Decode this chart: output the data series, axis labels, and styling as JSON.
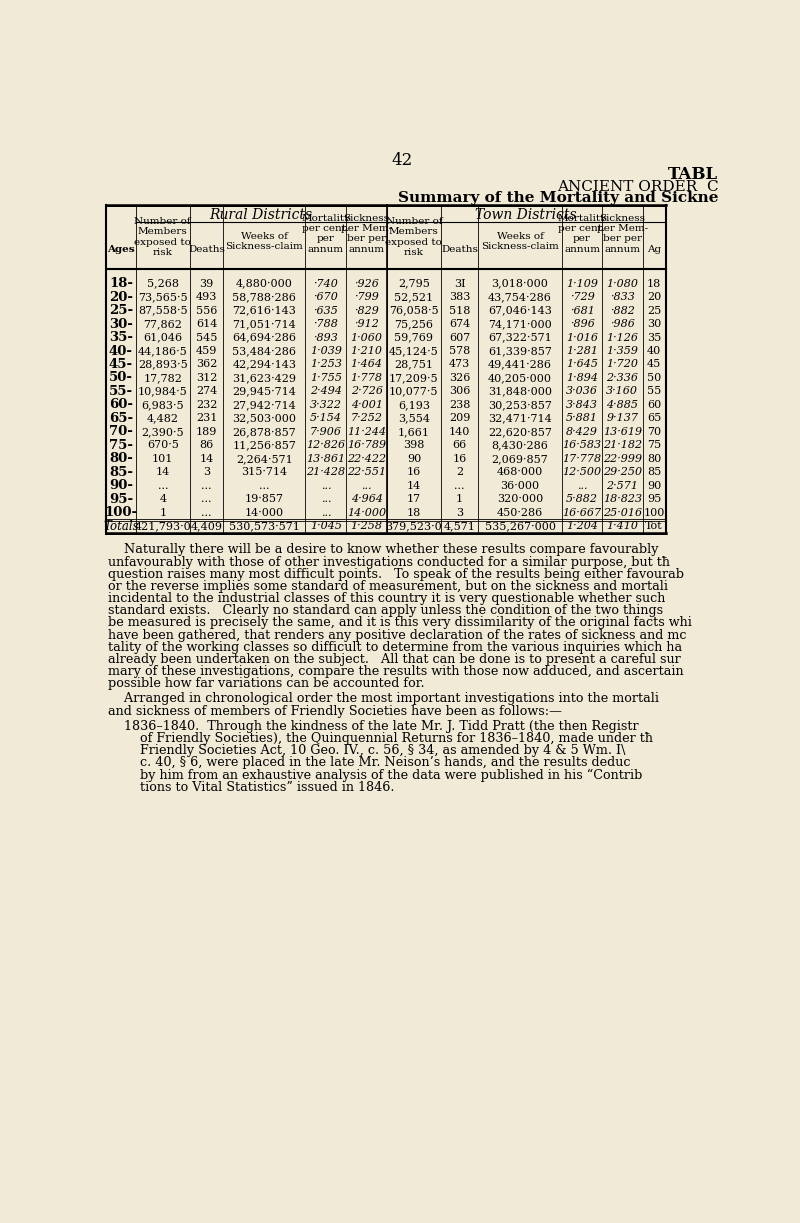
{
  "page_number": "42",
  "title1": "TABL",
  "title2": "ANCIENT ORDER  C",
  "title3": "Summary of the Mortality and Sickne",
  "bg_color": "#f0ead6",
  "table_header_rural": "Rural Districts",
  "table_header_town": "Town Districts",
  "rows": [
    [
      "18-",
      "5,268",
      "39",
      "4,880·000",
      "·740",
      "·926",
      "2,795",
      "3I",
      "3,018·000",
      "1·109",
      "1·080",
      "18"
    ],
    [
      "20-",
      "73,565·5",
      "493",
      "58,788·286",
      "·670",
      "·799",
      "52,521",
      "383",
      "43,754·286",
      "·729",
      "·833",
      "20"
    ],
    [
      "25-",
      "87,558·5",
      "556",
      "72,616·143",
      "·635",
      "·829",
      "76,058·5",
      "518",
      "67,046·143",
      "·681",
      "·882",
      "25"
    ],
    [
      "30-",
      "77,862",
      "614",
      "71,051·714",
      "·788",
      "·912",
      "75,256",
      "674",
      "74,171·000",
      "·896",
      "·986",
      "30"
    ],
    [
      "35-",
      "61,046",
      "545",
      "64,694·286",
      "·893",
      "1·060",
      "59,769",
      "607",
      "67,322·571",
      "1·016",
      "1·126",
      "35"
    ],
    [
      "40-",
      "44,186·5",
      "459",
      "53,484·286",
      "1·039",
      "1·210",
      "45,124·5",
      "578",
      "61,339·857",
      "1·281",
      "1·359",
      "40"
    ],
    [
      "45-",
      "28,893·5",
      "362",
      "42,294·143",
      "1·253",
      "1·464",
      "28,751",
      "473",
      "49,441·286",
      "1·645",
      "1·720",
      "45"
    ],
    [
      "50-",
      "17,782",
      "312",
      "31,623·429",
      "1·755",
      "1·778",
      "17,209·5",
      "326",
      "40,205·000",
      "1·894",
      "2·336",
      "50"
    ],
    [
      "55-",
      "10,984·5",
      "274",
      "29,945·714",
      "2·494",
      "2·726",
      "10,077·5",
      "306",
      "31,848·000",
      "3·036",
      "3·160",
      "55"
    ],
    [
      "60-",
      "6,983·5",
      "232",
      "27,942·714",
      "3·322",
      "4·001",
      "6,193",
      "238",
      "30,253·857",
      "3·843",
      "4·885",
      "60"
    ],
    [
      "65-",
      "4,482",
      "231",
      "32,503·000",
      "5·154",
      "7·252",
      "3,554",
      "209",
      "32,471·714",
      "5·881",
      "9·137",
      "65"
    ],
    [
      "70-",
      "2,390·5",
      "189",
      "26,878·857",
      "7·906",
      "11·244",
      "1,661",
      "140",
      "22,620·857",
      "8·429",
      "13·619",
      "70"
    ],
    [
      "75-",
      "670·5",
      "86",
      "11,256·857",
      "12·826",
      "16·789",
      "398",
      "66",
      "8,430·286",
      "16·583",
      "21·182",
      "75"
    ],
    [
      "80-",
      "101",
      "14",
      "2,264·571",
      "13·861",
      "22·422",
      "90",
      "16",
      "2,069·857",
      "17·778",
      "22·999",
      "80"
    ],
    [
      "85-",
      "14",
      "3",
      "315·714",
      "21·428",
      "22·551",
      "16",
      "2",
      "468·000",
      "12·500",
      "29·250",
      "85"
    ],
    [
      "90-",
      "...",
      "...",
      "...",
      "...",
      "...",
      "14",
      "...",
      "36·000",
      "...",
      "2·571",
      "90"
    ],
    [
      "95-",
      "4",
      "...",
      "19·857",
      "...",
      "4·964",
      "17",
      "1",
      "320·000",
      "5·882",
      "18·823",
      "95"
    ],
    [
      "100-",
      "1",
      "...",
      "14·000",
      "...",
      "14·000",
      "18",
      "3",
      "450·286",
      "16·667",
      "25·016",
      "100"
    ],
    [
      "Totals",
      "421,793·0",
      "4,409",
      "530,573·571",
      "1·045",
      "1·258",
      "379,523·0",
      "4,571",
      "535,267·000",
      "1·204",
      "1·410",
      "Tot"
    ]
  ],
  "body_paragraphs": [
    "    Naturally there will be a desire to know whether these results compare favourably\nunfavourably with those of other investigations conducted for a similar purpose, but tħ\nquestion raises many most difficult points.   To speak of the results being either favourab\nor the reverse implies some standard of measurement, but on the sickness and mortali\nincidental to the industrial classes of this country it is very questionable whether such\nstandard exists.   Clearly no standard can apply unless the condition of the two things\nbe measured is precisely the same, and it is this very dissimilarity of the original facts whi\nhave been gathered, that renders any positive declaration of the rates of sickness and mc\ntality of the working classes so difficult to determine from the various inquiries which ha\nalready been undertaken on the subject.   All that can be done is to present a careful sur\nmary of these investigations, compare the results with those now adduced, and ascertain\npossible how far variations can be accounted for.",
    "    Arranged in chronological order the most important investigations into the mortali\nand sickness of members of Friendly Societies have been as follows:—",
    "    1836–1840.  Through the kindness of the late Mr. J. Tidd Pratt (the then Registr\n        of Friendly Societies), the Quinquennial Returns for 1836–1840, made under tħ\n        Friendly Societies Act, 10 Geo. IV., c. 56, § 34, as amended by 4 & 5 Wm. I\\\n        c. 40, § 6, were placed in the late Mr. Neison’s hands, and the results deduc\n        by him from an exhaustive analysis of the data were published in his “Contrib\n        tions to Vital Statistics” issued in 1846."
  ]
}
